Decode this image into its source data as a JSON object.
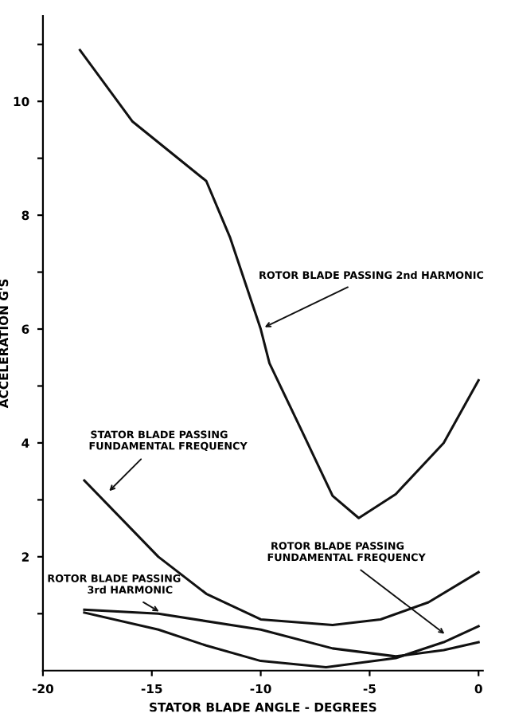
{
  "chart_data": {
    "type": "line",
    "xlabel": "STATOR BLADE ANGLE - DEGREES",
    "ylabel": "ACCELERATION G'S",
    "xlim": [
      -20,
      0.2
    ],
    "ylim": [
      0,
      11.5
    ],
    "xticks": [
      -20,
      -15,
      -10,
      -5,
      0
    ],
    "yticks": [
      {
        "value": 1,
        "label": null
      },
      2,
      {
        "value": 3,
        "label": null
      },
      4,
      {
        "value": 5,
        "label": null
      },
      6,
      {
        "value": 7,
        "label": null
      },
      8,
      {
        "value": 9,
        "label": null
      },
      10,
      {
        "value": 11,
        "label": null
      }
    ],
    "grid": false,
    "legend": false,
    "marker": "none",
    "line_style": "solid",
    "series": [
      {
        "color": "#111111",
        "x": [
          -18.3,
          -15.9,
          -12.5,
          -11.4,
          -10,
          -9.6,
          -8.1,
          -6.7,
          -5.5,
          -3.8,
          -1.6,
          0
        ],
        "values": [
          10.9,
          9.65,
          8.6,
          7.6,
          6.0,
          5.4,
          4.2,
          3.07,
          2.68,
          3.1,
          4.0,
          5.1
        ]
      },
      {
        "color": "#111111",
        "x": [
          -18.1,
          -14.7,
          -12.5,
          -10,
          -6.7,
          -4.5,
          -2.3,
          0
        ],
        "values": [
          3.34,
          2.0,
          1.35,
          0.9,
          0.8,
          0.9,
          1.2,
          1.73
        ]
      },
      {
        "color": "#111111",
        "x": [
          -18.1,
          -14.7,
          -10,
          -6.7,
          -3.8,
          -1.6,
          0
        ],
        "values": [
          1.07,
          1.0,
          0.72,
          0.39,
          0.25,
          0.36,
          0.5
        ]
      },
      {
        "color": "#111111",
        "x": [
          -18.1,
          -14.7,
          -12.5,
          -10,
          -7.0,
          -3.8,
          -1.6,
          0
        ],
        "values": [
          1.02,
          0.72,
          0.44,
          0.17,
          0.06,
          0.22,
          0.5,
          0.78
        ]
      }
    ],
    "annotations": [
      {
        "text": "ROTOR BLADE PASSING 2nd HARMONIC",
        "x": -10,
        "y": 6.0
      },
      {
        "text": "STATOR BLADE PASSING\n     FUNDAMENTAL FREQUENCY",
        "x": -17.1,
        "y": 3.1
      },
      {
        "text": "ROTOR BLADE PASSING\n     FUNDAMENTAL FREQUENCY",
        "x": -1.4,
        "y": 0.6
      },
      {
        "text": "ROTOR BLADE PASSING\n         3rd HARMONIC",
        "x": -14.5,
        "y": 1.0
      }
    ]
  }
}
